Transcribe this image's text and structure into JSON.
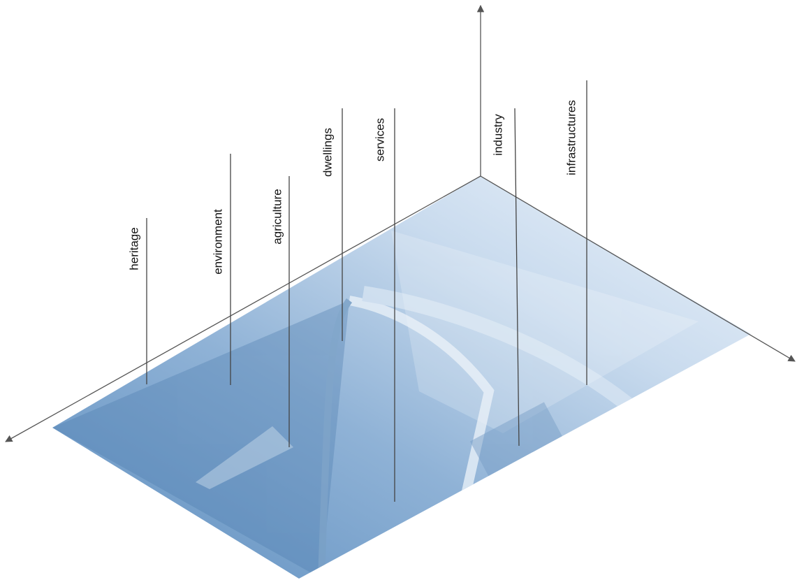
{
  "labels": [
    "heritage",
    "environment",
    "agriculture",
    "dwellings",
    "services",
    "industry",
    "infrastructures"
  ]
}
